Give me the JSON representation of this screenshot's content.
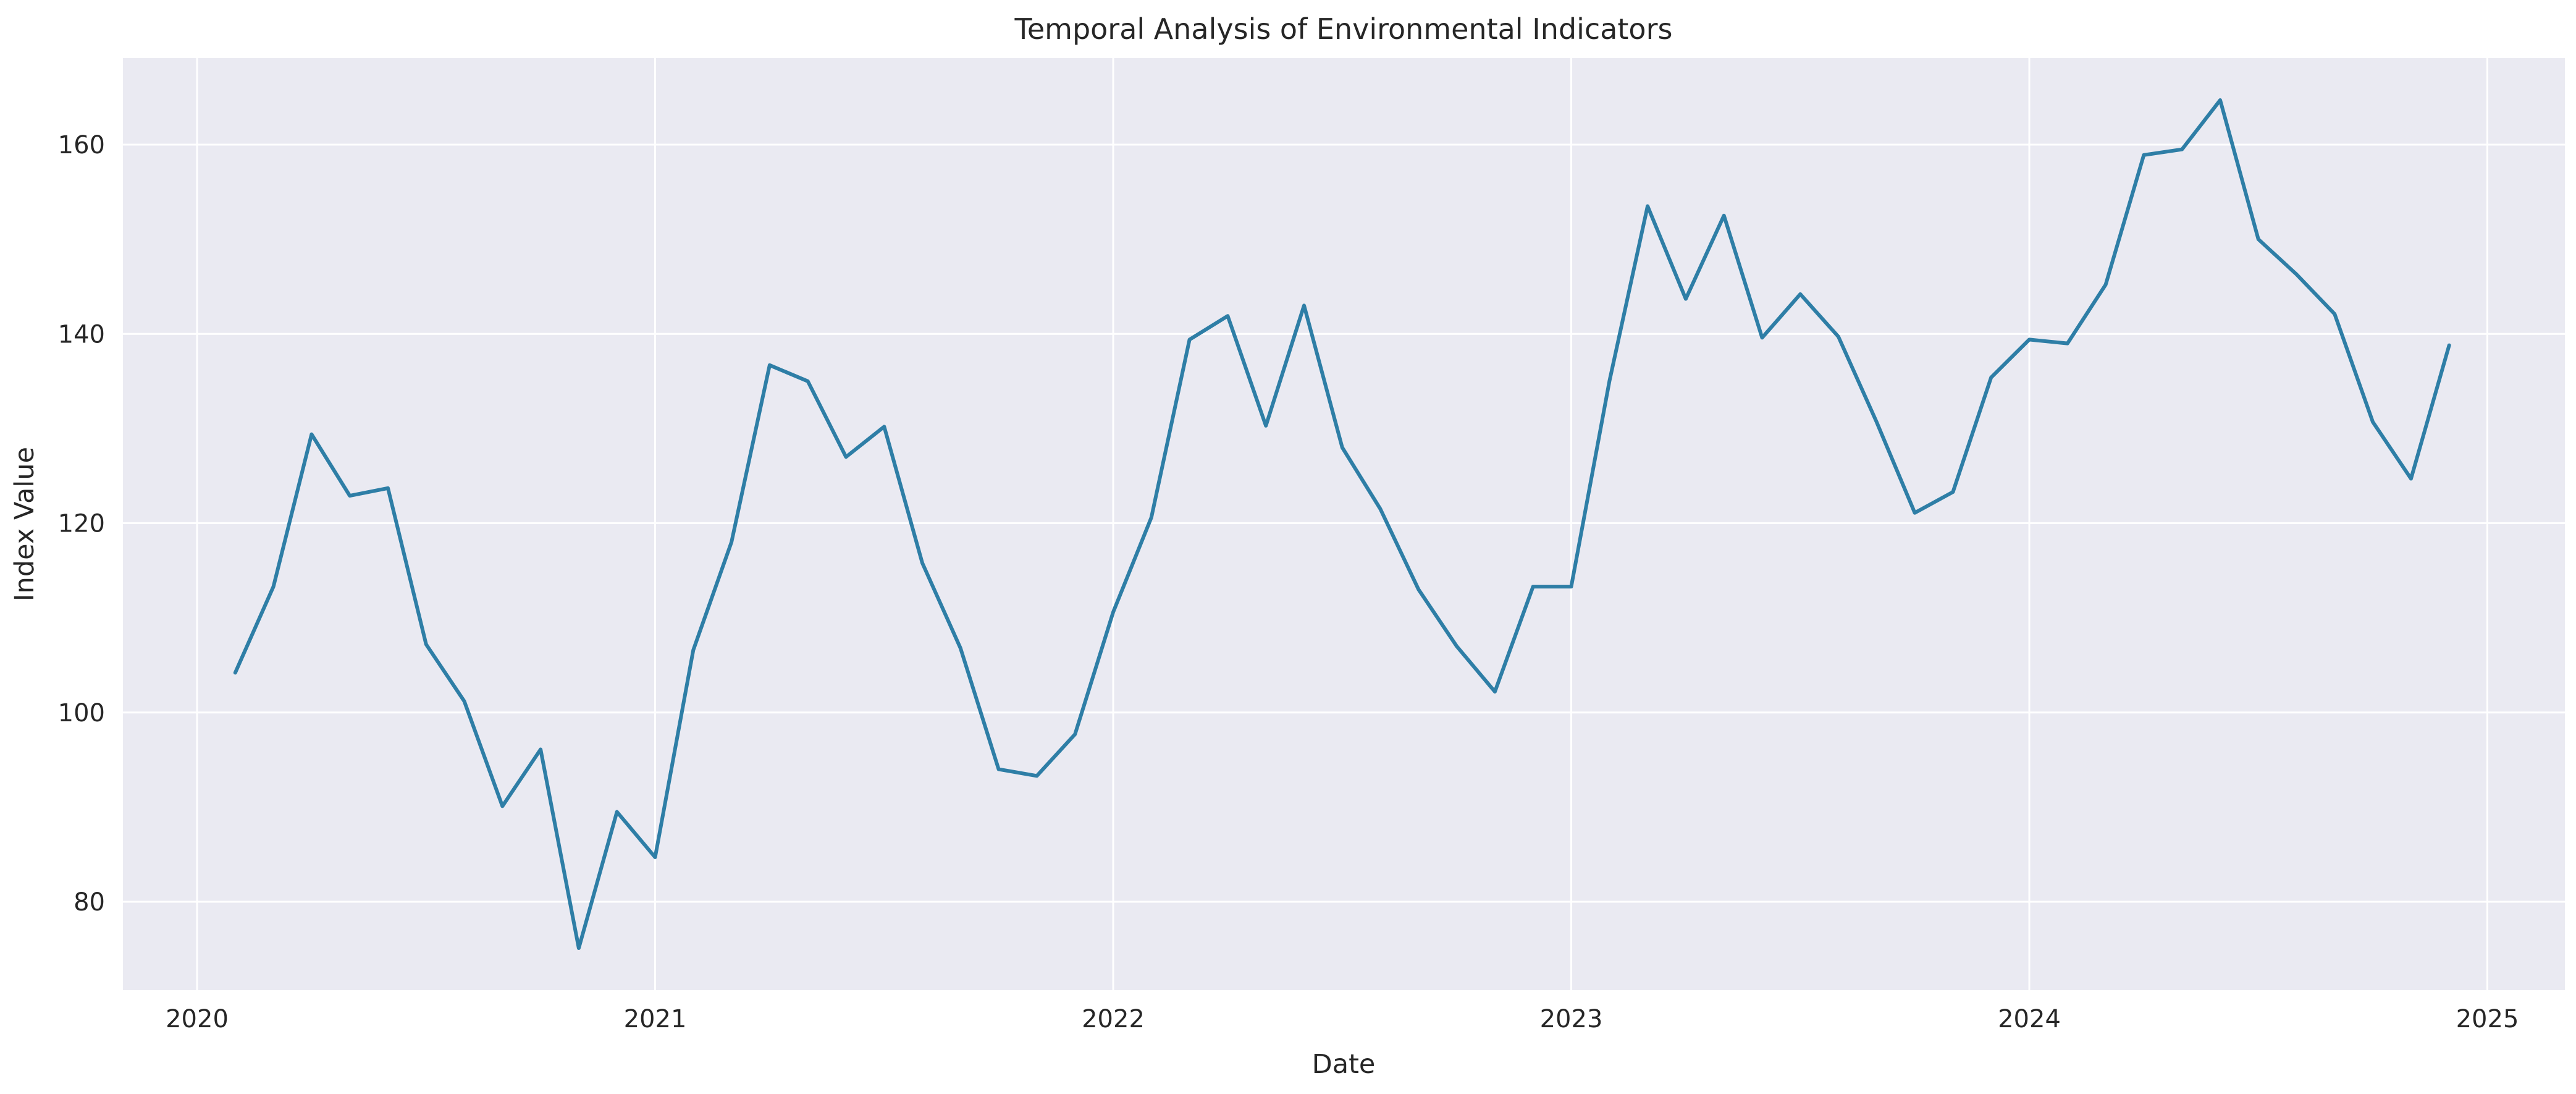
{
  "title": "Temporal Analysis of Environmental Indicators",
  "chart_data": {
    "type": "line",
    "title": "Temporal Analysis of Environmental Indicators",
    "xlabel": "Date",
    "ylabel": "Index Value",
    "grid": true,
    "legend": "none",
    "x_tick_labels": [
      "2020",
      "2021",
      "2022",
      "2023",
      "2024",
      "2025"
    ],
    "x_tick_years": [
      2020,
      2021,
      2022,
      2023,
      2024,
      2025
    ],
    "y_ticks": [
      80,
      100,
      120,
      140,
      160
    ],
    "ylim": [
      70.6,
      169.2
    ],
    "x": [
      "2020-01",
      "2020-02",
      "2020-03",
      "2020-04",
      "2020-05",
      "2020-06",
      "2020-07",
      "2020-08",
      "2020-09",
      "2020-10",
      "2020-11",
      "2020-12",
      "2021-01",
      "2021-02",
      "2021-03",
      "2021-04",
      "2021-05",
      "2021-06",
      "2021-07",
      "2021-08",
      "2021-09",
      "2021-10",
      "2021-11",
      "2021-12",
      "2022-01",
      "2022-02",
      "2022-03",
      "2022-04",
      "2022-05",
      "2022-06",
      "2022-07",
      "2022-08",
      "2022-09",
      "2022-10",
      "2022-11",
      "2022-12",
      "2023-01",
      "2023-02",
      "2023-03",
      "2023-04",
      "2023-05",
      "2023-06",
      "2023-07",
      "2023-08",
      "2023-09",
      "2023-10",
      "2023-11",
      "2023-12",
      "2024-01",
      "2024-02",
      "2024-03",
      "2024-04",
      "2024-05",
      "2024-06",
      "2024-07",
      "2024-08",
      "2024-09",
      "2024-10",
      "2024-11"
    ],
    "values": [
      104.2,
      113.3,
      129.4,
      122.9,
      123.7,
      107.2,
      101.2,
      90.1,
      96.1,
      75.1,
      89.5,
      84.7,
      106.6,
      118.0,
      136.7,
      135.0,
      127.0,
      130.2,
      115.8,
      106.8,
      94.0,
      93.3,
      97.7,
      110.6,
      120.6,
      139.4,
      141.9,
      130.3,
      143.0,
      128.0,
      121.5,
      113.0,
      107.0,
      102.2,
      113.3,
      113.3,
      135.0,
      153.5,
      143.7,
      152.5,
      139.6,
      144.2,
      139.7,
      130.7,
      121.1,
      123.3,
      135.4,
      139.4,
      139.0,
      145.2,
      158.9,
      159.5,
      164.7,
      150.0,
      146.3,
      142.1,
      130.7,
      124.7,
      138.8
    ],
    "colors": {
      "line": "#2e7ea6",
      "plot_background": "#eaeaf2",
      "figure_background": "#ffffff",
      "gridline": "#ffffff",
      "text": "#262626"
    }
  }
}
